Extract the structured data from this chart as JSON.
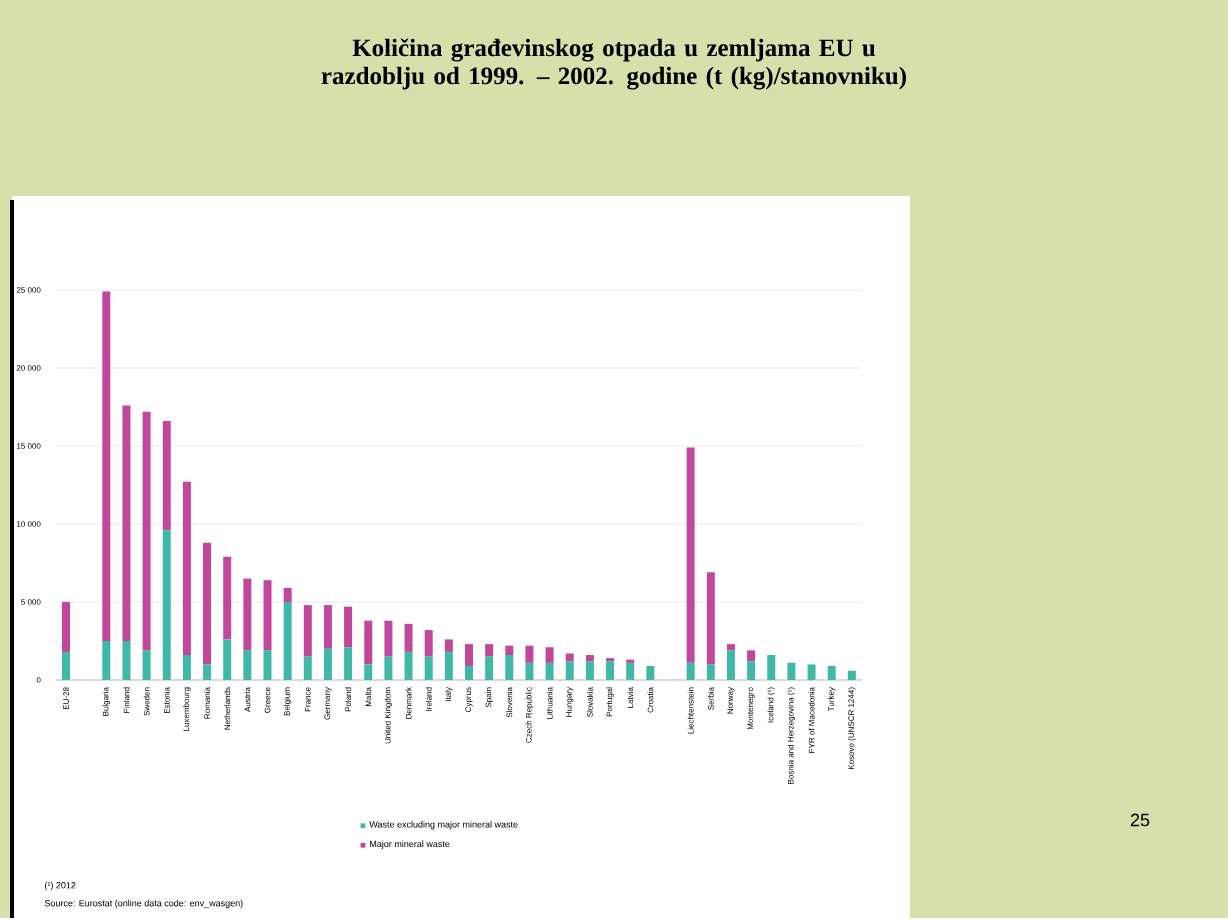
{
  "chart_data": {
    "type": "bar",
    "stacked": true,
    "title": "Količina građevinskog otpada u zemljama EU u razdoblju od 1999. – 2002. godine  (t (kg)/stanovniku)",
    "categories": [
      "EU-28",
      null,
      "Bulgaria",
      "Finland",
      "Sweden",
      "Estonia",
      "Luxembourg",
      "Romania",
      "Netherlands",
      "Austria",
      "Greece",
      "Belgium",
      "France",
      "Germany",
      "Poland",
      "Malta",
      "United Kingdom",
      "Denmark",
      "Ireland",
      "Italy",
      "Cyprus",
      "Spain",
      "Slovenia",
      "Czech Republic",
      "Lithuania",
      "Hungary",
      "Slovakia",
      "Portugal",
      "Latvia",
      "Croatia",
      null,
      "Liechtenstein",
      "Serbia",
      "Norway",
      "Montenegro",
      "Iceland (¹)",
      "Bosnia and Herzegovina (¹)",
      "FYR of Macedonia",
      "Turkey",
      "Kosovo (UNSCR 1244)"
    ],
    "series": [
      {
        "name": "Waste excluding major mineral waste",
        "color": "#3fb8a8",
        "values": [
          1800,
          null,
          2500,
          2500,
          1900,
          9600,
          1600,
          1000,
          2600,
          1900,
          1900,
          5000,
          1500,
          2000,
          2100,
          1000,
          1500,
          1800,
          1500,
          1800,
          900,
          1500,
          1600,
          1100,
          1100,
          1200,
          1200,
          1200,
          1100,
          900,
          null,
          1100,
          1000,
          1900,
          1200,
          1600,
          1100,
          1000,
          900,
          600
        ]
      },
      {
        "name": "Major mineral waste",
        "color": "#c0479a",
        "values": [
          3200,
          null,
          22400,
          15100,
          15300,
          7000,
          11100,
          7800,
          5300,
          4600,
          4500,
          900,
          3300,
          2800,
          2600,
          2800,
          2300,
          1800,
          1700,
          800,
          1400,
          800,
          600,
          1100,
          1000,
          500,
          400,
          200,
          200,
          0,
          null,
          13800,
          5900,
          400,
          700,
          0,
          0,
          0,
          0,
          0
        ]
      }
    ],
    "ylim": [
      0,
      25000
    ],
    "yticks": [
      0,
      {
        "value": 5000,
        "label": "5 000"
      },
      {
        "value": 10000,
        "label": "10 000"
      },
      {
        "value": 15000,
        "label": "15 000"
      },
      {
        "value": 20000,
        "label": "20 000"
      },
      {
        "value": 25000,
        "label": "25 000"
      }
    ],
    "grid": "y",
    "legend": "bottom",
    "annotations": [
      "(¹) 2012",
      "Source: Eurostat (online data code: env_wasgen)",
      "25"
    ]
  }
}
